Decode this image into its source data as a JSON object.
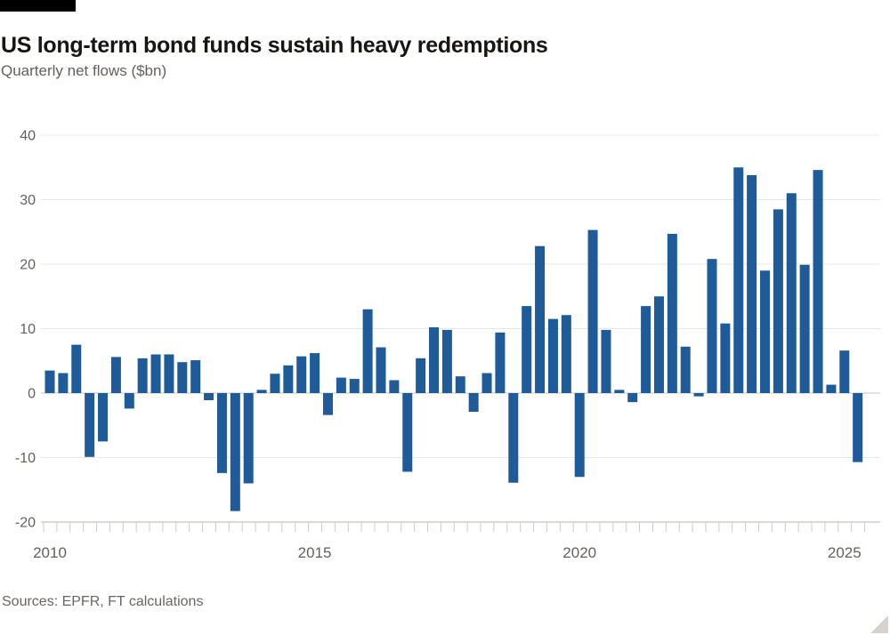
{
  "header": {
    "title": "US long-term bond funds sustain heavy redemptions",
    "subtitle": "Quarterly net flows ($bn)"
  },
  "footer": {
    "sources": "Sources: EPFR, FT calculations"
  },
  "colors": {
    "bar": "#1f5b99",
    "text_gray": "#66605c",
    "brand_bar": "#000000"
  },
  "chart_data": {
    "type": "bar",
    "title": "US long-term bond funds sustain heavy redemptions",
    "subtitle": "Quarterly net flows ($bn)",
    "xlabel": "",
    "ylabel": "Quarterly net flows ($bn)",
    "ylim": [
      -20,
      40
    ],
    "yticks": [
      40,
      30,
      20,
      10,
      0,
      -10,
      -20
    ],
    "x_year_labels": [
      2010,
      2015,
      2020,
      2025
    ],
    "grid": true,
    "legend": "none",
    "bar_color": "#1f5b99",
    "categories": [
      "2010 Q1",
      "2010 Q2",
      "2010 Q3",
      "2010 Q4",
      "2011 Q1",
      "2011 Q2",
      "2011 Q3",
      "2011 Q4",
      "2012 Q1",
      "2012 Q2",
      "2012 Q3",
      "2012 Q4",
      "2013 Q1",
      "2013 Q2",
      "2013 Q3",
      "2013 Q4",
      "2014 Q1",
      "2014 Q2",
      "2014 Q3",
      "2014 Q4",
      "2015 Q1",
      "2015 Q2",
      "2015 Q3",
      "2015 Q4",
      "2016 Q1",
      "2016 Q2",
      "2016 Q3",
      "2016 Q4",
      "2017 Q1",
      "2017 Q2",
      "2017 Q3",
      "2017 Q4",
      "2018 Q1",
      "2018 Q2",
      "2018 Q3",
      "2018 Q4",
      "2019 Q1",
      "2019 Q2",
      "2019 Q3",
      "2019 Q4",
      "2020 Q1",
      "2020 Q2",
      "2020 Q3",
      "2020 Q4",
      "2021 Q1",
      "2021 Q2",
      "2021 Q3",
      "2021 Q4",
      "2022 Q1",
      "2022 Q2",
      "2022 Q3",
      "2022 Q4",
      "2023 Q1",
      "2023 Q2",
      "2023 Q3",
      "2023 Q4",
      "2024 Q1",
      "2024 Q2",
      "2024 Q3",
      "2024 Q4",
      "2025 Q1",
      "2025 Q2"
    ],
    "values": [
      3.5,
      3.1,
      7.5,
      -9.9,
      -7.5,
      5.6,
      -2.4,
      5.4,
      6.0,
      6.0,
      4.8,
      5.1,
      -1.1,
      -12.4,
      -18.3,
      -14.0,
      0.5,
      3.0,
      4.3,
      5.7,
      6.2,
      -3.4,
      2.4,
      2.2,
      13.0,
      7.1,
      2.0,
      -12.2,
      5.4,
      10.2,
      9.8,
      2.6,
      -2.9,
      3.1,
      9.4,
      -13.9,
      13.5,
      22.8,
      11.5,
      12.1,
      -13.0,
      25.3,
      9.8,
      0.5,
      -1.4,
      13.5,
      15.0,
      24.7,
      7.2,
      -0.5,
      20.8,
      10.8,
      35.0,
      33.8,
      19.0,
      28.5,
      31.0,
      19.9,
      34.6,
      1.3,
      6.6,
      -10.7
    ]
  }
}
